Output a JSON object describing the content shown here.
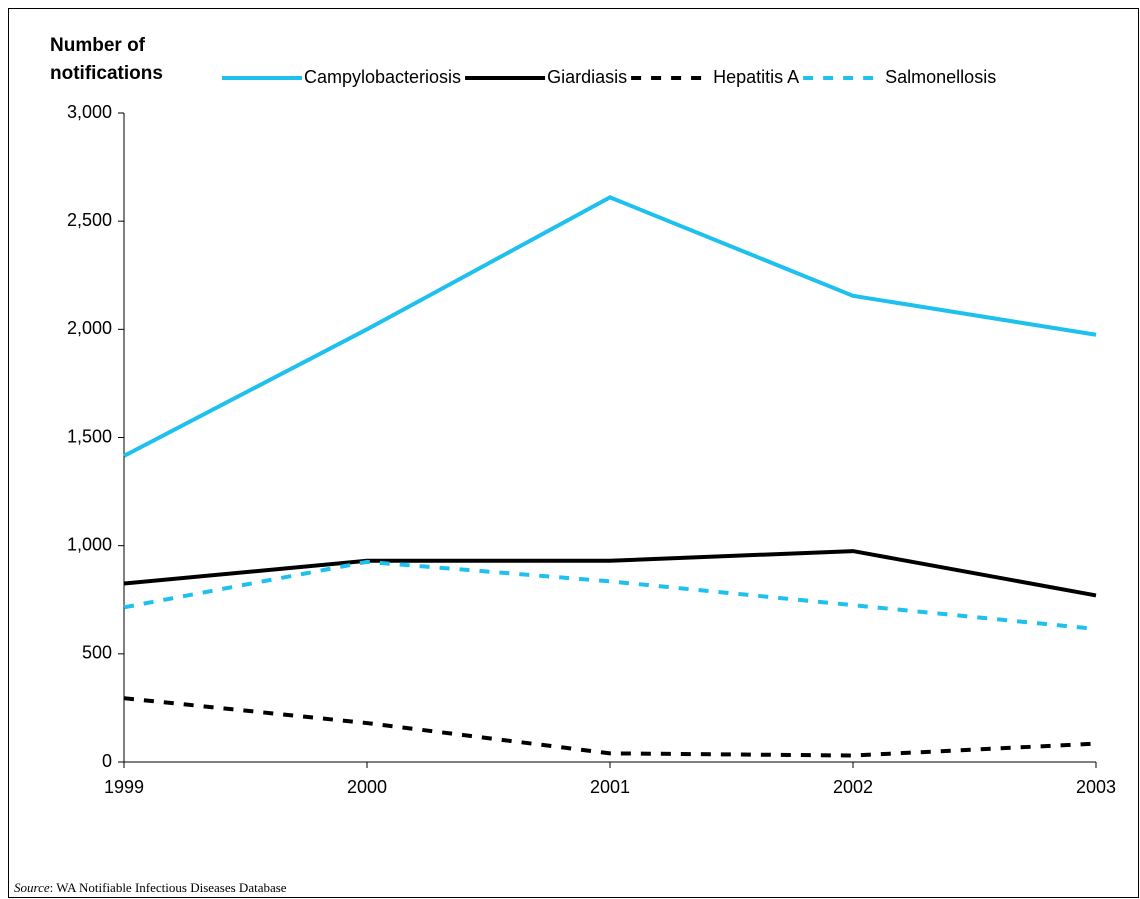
{
  "chart_data": {
    "type": "line",
    "ylabel": "Number of notifications",
    "x": [
      1999,
      2000,
      2001,
      2002,
      2003
    ],
    "xlim": [
      1999,
      2003
    ],
    "xticks": [
      1999,
      2000,
      2001,
      2002,
      2003
    ],
    "ylim": [
      0,
      3000
    ],
    "yticks": [
      0,
      500,
      {
        "value": 1000,
        "label": "1,000"
      },
      {
        "value": 1500,
        "label": "1,500"
      },
      {
        "value": 2000,
        "label": "2,000"
      },
      {
        "value": 2500,
        "label": "2,500"
      },
      {
        "value": 3000,
        "label": "3,000"
      }
    ],
    "grid": false,
    "series": [
      {
        "name": "Campylobacteriosis",
        "color": "#1ec0ee",
        "dashed": false,
        "values": [
          1415,
          2000,
          2610,
          2155,
          1975
        ]
      },
      {
        "name": "Giardiasis",
        "color": "#000000",
        "dashed": false,
        "values": [
          825,
          930,
          930,
          975,
          770
        ]
      },
      {
        "name": "Hepatitis A",
        "color": "#000000",
        "dashed": true,
        "values": [
          295,
          180,
          40,
          30,
          85
        ]
      },
      {
        "name": "Salmonellosis",
        "color": "#1ec0ee",
        "dashed": true,
        "values": [
          715,
          925,
          835,
          725,
          615
        ]
      }
    ],
    "source_label": "Source",
    "source_text": ": WA Notifiable Infectious Diseases Database"
  }
}
